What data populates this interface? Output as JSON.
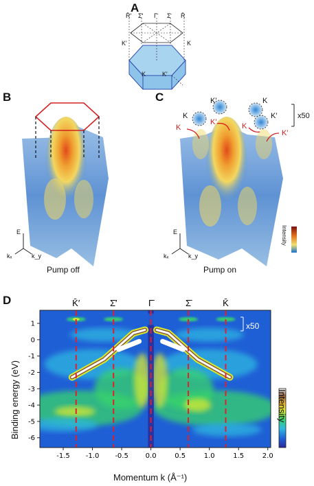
{
  "panels": {
    "a": {
      "label": "A",
      "top_points": [
        "R̄′",
        "Σ̄′",
        "Γ̄",
        "Σ̄",
        "R̄"
      ],
      "hex_labels": {
        "k_prime_left": "K′",
        "k_right": "K",
        "k_center": "K",
        "k_prime_center": "K′"
      }
    },
    "b": {
      "label": "B",
      "caption": "Pump off",
      "axis_e": "E",
      "axis_kx": "kₓ",
      "axis_ky": "k_y"
    },
    "c": {
      "label": "C",
      "caption": "Pump on",
      "colorbar_label": "Intensity",
      "scale": "x50",
      "valley_labels": [
        "K",
        "K′",
        "K",
        "K′"
      ],
      "red_labels": [
        "K",
        "K′",
        "K",
        "K′"
      ]
    },
    "d": {
      "label": "D",
      "scale": "x50",
      "colorbar_label": "Intensity",
      "top_labels": [
        "K̄′",
        "Σ̄′",
        "Γ̄",
        "Σ̄",
        "K̄"
      ]
    }
  },
  "chart_data": {
    "type": "heatmap",
    "xlabel": "Momentum k (Å⁻¹)",
    "ylabel": "Binding energy (eV)",
    "xlim": [
      -1.9,
      2.05
    ],
    "ylim": [
      -6.6,
      1.8
    ],
    "xticks": [
      "-1.5",
      "-1.0",
      "-0.5",
      "0.0",
      "0.5",
      "1.0",
      "1.5",
      "2.0"
    ],
    "xtick_values": [
      -1.5,
      -1.0,
      -0.5,
      0.0,
      0.5,
      1.0,
      1.5,
      2.0
    ],
    "yticks": [
      "1",
      "0",
      "-1",
      "-2",
      "-3",
      "-4",
      "-5",
      "-6"
    ],
    "ytick_values": [
      1,
      0,
      -1,
      -2,
      -3,
      -4,
      -5,
      -6
    ],
    "high_symmetry_points": [
      {
        "label": "K̄′",
        "k": -1.28
      },
      {
        "label": "Σ̄′",
        "k": -0.64
      },
      {
        "label": "Γ̄",
        "k": 0.0
      },
      {
        "label": "Σ̄",
        "k": 0.64
      },
      {
        "label": "K̄",
        "k": 1.28
      }
    ],
    "colormap": [
      "#2a2a9a",
      "#1f5fd6",
      "#2fb8e0",
      "#39d46a",
      "#d8e830",
      "#e8b030",
      "#8a5a3a",
      "#ffffff"
    ],
    "line_color": "#e0202a"
  }
}
